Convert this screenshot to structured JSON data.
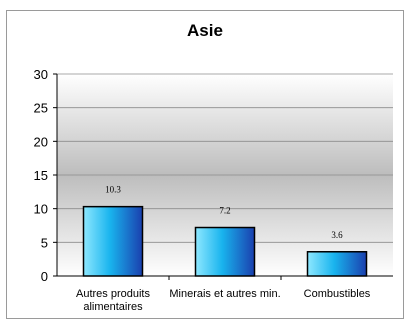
{
  "chart_data": {
    "type": "bar",
    "title": "Asie",
    "categories": [
      [
        "Autres produits",
        "alimentaires"
      ],
      [
        "Minerais et autres min."
      ],
      [
        "Combustibles"
      ]
    ],
    "values": [
      10.3,
      7.2,
      3.6
    ],
    "data_labels": [
      "10.3",
      "7.2",
      "3.6"
    ],
    "ylim": [
      0,
      30
    ],
    "yticks": [
      "0",
      "5",
      "10",
      "15",
      "20",
      "25",
      "30"
    ],
    "grid": true,
    "legend": "none",
    "colors": {
      "bar_light": "#8ee8ff",
      "bar_mid": "#19b4ee",
      "bar_dark": "#1a3fae",
      "bar_edge": "#000000",
      "plot_top": "#ffffff",
      "plot_mid": "#bdbdbd",
      "plot_bottom": "#ffffff"
    }
  }
}
